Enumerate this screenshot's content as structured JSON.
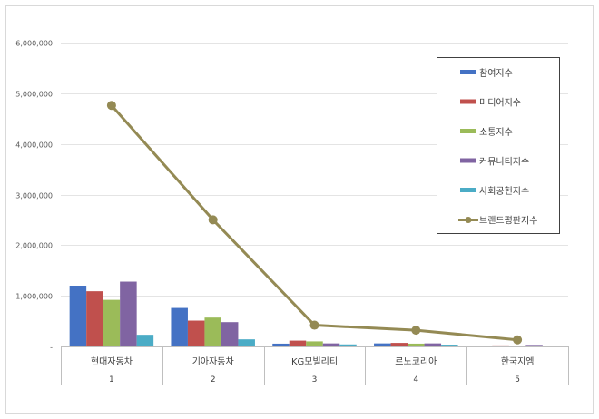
{
  "chart_data": {
    "type": "bar",
    "categories": [
      "현대자동차",
      "기아자동차",
      "KG모빌리티",
      "르노코리아",
      "한국지엠"
    ],
    "category_numbers": [
      "1",
      "2",
      "3",
      "4",
      "5"
    ],
    "series": [
      {
        "name": "참여지수",
        "type": "bar",
        "color": "#4472c4",
        "values": [
          1200000,
          760000,
          55000,
          60000,
          15000
        ]
      },
      {
        "name": "미디어지수",
        "type": "bar",
        "color": "#c0504d",
        "values": [
          1090000,
          510000,
          115000,
          70000,
          20000
        ]
      },
      {
        "name": "소통지수",
        "type": "bar",
        "color": "#9bbb59",
        "values": [
          920000,
          570000,
          100000,
          55000,
          15000
        ]
      },
      {
        "name": "커뮤니티지수",
        "type": "bar",
        "color": "#8064a2",
        "values": [
          1280000,
          480000,
          60000,
          60000,
          30000
        ]
      },
      {
        "name": "사회공헌지수",
        "type": "bar",
        "color": "#4bacc6",
        "values": [
          230000,
          140000,
          40000,
          35000,
          10000
        ]
      },
      {
        "name": "브랜드평판지수",
        "type": "line",
        "color": "#948a54",
        "values": [
          4760000,
          2500000,
          420000,
          320000,
          130000
        ]
      }
    ],
    "y_ticks": [
      "-",
      "1,000,000",
      "2,000,000",
      "3,000,000",
      "4,000,000",
      "5,000,000",
      "6,000,000"
    ],
    "ylim": [
      0,
      6000000
    ],
    "grid": true,
    "legend_position": "top-right",
    "title": "",
    "xlabel": "",
    "ylabel": ""
  }
}
